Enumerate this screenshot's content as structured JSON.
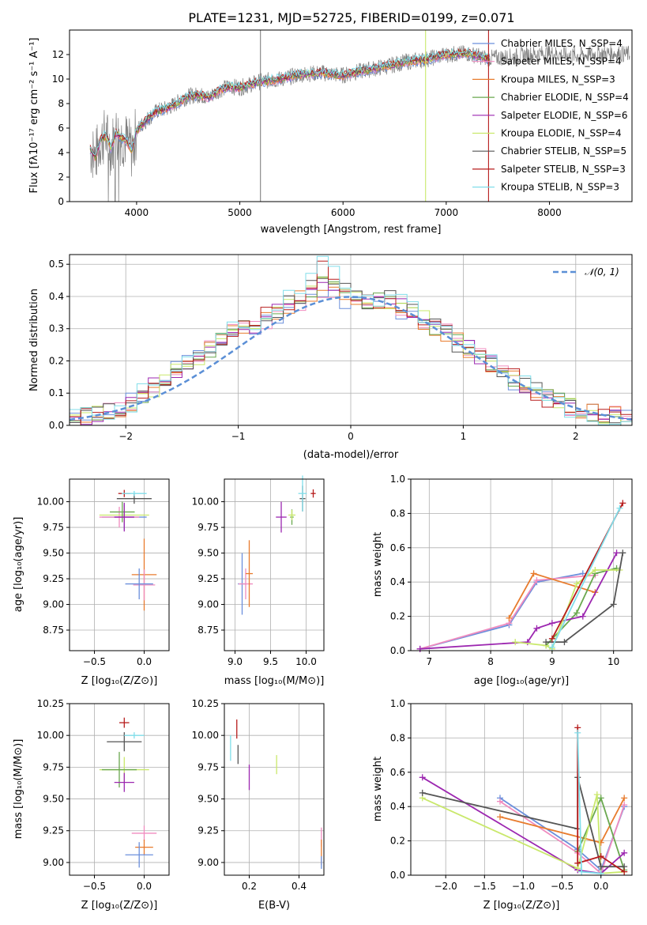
{
  "chart_data": [
    {
      "type": "line",
      "title": "PLATE=1231, MJD=52725, FIBERID=0199, z=0.071",
      "xlabel": "wavelength [Angstrom, rest frame]",
      "ylabel": "Flux [fλ10⁻¹⁷ erg cm⁻² s⁻¹ A⁻¹]",
      "xlim": [
        3350,
        8800
      ],
      "ylim": [
        0,
        14
      ],
      "xticks": [
        "4000",
        "5000",
        "6000",
        "7000",
        "8000"
      ],
      "yticks": [
        "0",
        "2",
        "4",
        "6",
        "8",
        "10",
        "12"
      ],
      "legend_position": "top-right",
      "legend": [
        {
          "label": "Chabrier MILES, N_SSP=4",
          "color": "#6b8fdc"
        },
        {
          "label": "Salpeter MILES, N_SSP=4",
          "color": "#f08cbf"
        },
        {
          "label": "Kroupa MILES, N_SSP=3",
          "color": "#e87b2d"
        },
        {
          "label": "Chabrier ELODIE, N_SSP=4",
          "color": "#6aa84f"
        },
        {
          "label": "Salpeter ELODIE, N_SSP=6",
          "color": "#9c27b0"
        },
        {
          "label": "Kroupa ELODIE, N_SSP=4",
          "color": "#c9e86b"
        },
        {
          "label": "Chabrier STELIB, N_SSP=5",
          "color": "#555555"
        },
        {
          "label": "Salpeter STELIB, N_SSP=3",
          "color": "#b71c1c"
        },
        {
          "label": "Kroupa STELIB, N_SSP=3",
          "color": "#80deea"
        }
      ],
      "observed_color": "#808080",
      "series": [
        {
          "x": [
            3550,
            3600,
            3650,
            3700,
            3750,
            3800,
            3850,
            3900,
            3950,
            4000,
            4100,
            4200,
            4300,
            4400,
            4500,
            4600,
            4700,
            4800,
            4900,
            5000,
            5200,
            5400,
            5600,
            5800,
            6000,
            6200,
            6400,
            6600,
            6800,
            7000,
            7200,
            7400,
            7600,
            7800,
            8000,
            8200,
            8400,
            8600,
            8800
          ],
          "y": [
            4.3,
            3.6,
            5.0,
            5.4,
            4.4,
            5.6,
            5.2,
            5.0,
            4.2,
            5.8,
            6.7,
            7.4,
            7.6,
            8.1,
            8.6,
            8.7,
            8.5,
            9.1,
            9.4,
            9.3,
            9.8,
            10.0,
            10.4,
            10.5,
            10.3,
            10.7,
            11.0,
            11.4,
            11.6,
            12.0,
            12.1,
            11.7,
            11.8,
            12.0,
            12.1,
            11.9,
            12.0,
            12.1,
            12.0
          ]
        }
      ]
    },
    {
      "type": "line",
      "xlabel": "(data-model)/error",
      "ylabel": "Normed distribution",
      "xlim": [
        -2.5,
        2.5
      ],
      "ylim": [
        0,
        0.53
      ],
      "xticks": [
        "−2",
        "−1",
        "0",
        "1",
        "2"
      ],
      "yticks": [
        "0.0",
        "0.1",
        "0.2",
        "0.3",
        "0.4",
        "0.5"
      ],
      "legend_position": "top-right",
      "legend": [
        {
          "label": "𝒩(0, 1)",
          "color": "#5b8fd6"
        }
      ],
      "series": [
        {
          "x": [
            -2.5,
            -2.3,
            -2.1,
            -1.9,
            -1.7,
            -1.5,
            -1.3,
            -1.1,
            -0.9,
            -0.7,
            -0.5,
            -0.3,
            -0.1,
            0.1,
            0.3,
            0.5,
            0.7,
            0.9,
            1.1,
            1.3,
            1.5,
            1.7,
            1.9,
            2.1,
            2.3,
            2.5
          ],
          "y": [
            0.03,
            0.04,
            0.05,
            0.09,
            0.15,
            0.2,
            0.25,
            0.29,
            0.31,
            0.34,
            0.38,
            0.41,
            0.39,
            0.39,
            0.37,
            0.34,
            0.3,
            0.27,
            0.21,
            0.16,
            0.12,
            0.09,
            0.06,
            0.04,
            0.03,
            0.02
          ]
        },
        {
          "x": [
            -2.5,
            -2.3,
            -2.1,
            -1.9,
            -1.7,
            -1.5,
            -1.3,
            -1.1,
            -0.9,
            -0.7,
            -0.5,
            -0.3,
            -0.1,
            0.1,
            0.3,
            0.5,
            0.7,
            0.9,
            1.1,
            1.3,
            1.5,
            1.7,
            1.9,
            2.1,
            2.3,
            2.5
          ],
          "y": [
            0.02,
            0.03,
            0.04,
            0.1,
            0.13,
            0.19,
            0.22,
            0.3,
            0.32,
            0.37,
            0.41,
            0.5,
            0.44,
            0.38,
            0.4,
            0.36,
            0.32,
            0.25,
            0.22,
            0.17,
            0.13,
            0.08,
            0.05,
            0.03,
            0.03,
            0.01
          ]
        }
      ]
    },
    {
      "type": "scatter",
      "xlabel": "Z [log₁₀(Z/Z⊙)]",
      "ylabel": "age  [log₁₀(age/yr)]",
      "xlim": [
        -0.75,
        0.25
      ],
      "ylim": [
        8.55,
        10.22
      ],
      "xticks": [
        "−0.5",
        "0.0"
      ],
      "yticks": [
        "8.75",
        "9.00",
        "9.25",
        "9.50",
        "9.75",
        "10.00"
      ]
    },
    {
      "type": "scatter",
      "xlabel": "mass [log₁₀(M/M⊙)]",
      "xlim": [
        8.85,
        10.25
      ],
      "ylim": [
        8.55,
        10.22
      ],
      "xticks": [
        "9.0",
        "9.5",
        "10.0"
      ],
      "yticks": [
        "8.75",
        "9.00",
        "9.25",
        "9.50",
        "9.75",
        "10.00"
      ]
    },
    {
      "type": "line",
      "xlabel": "age  [log₁₀(age/yr)]",
      "ylabel": "mass weight",
      "xlim": [
        6.7,
        10.3
      ],
      "ylim": [
        0,
        1.0
      ],
      "xticks": [
        "7",
        "8",
        "9",
        "10"
      ],
      "yticks": [
        "0.0",
        "0.2",
        "0.4",
        "0.6",
        "0.8",
        "1.0"
      ],
      "series": [
        {
          "x": [
            6.85,
            8.3,
            8.75,
            9.5
          ],
          "y": [
            0.01,
            0.15,
            0.4,
            0.45
          ]
        },
        {
          "x": [
            6.85,
            8.3,
            8.75,
            9.7
          ],
          "y": [
            0.01,
            0.16,
            0.41,
            0.44
          ]
        },
        {
          "x": [
            8.3,
            8.7,
            9.7
          ],
          "y": [
            0.19,
            0.45,
            0.34
          ]
        },
        {
          "x": [
            8.9,
            9.4,
            9.7,
            10.05
          ],
          "y": [
            0.03,
            0.22,
            0.45,
            0.48
          ]
        },
        {
          "x": [
            6.85,
            8.6,
            8.75,
            9.0,
            9.5,
            10.05
          ],
          "y": [
            0.01,
            0.05,
            0.13,
            0.16,
            0.2,
            0.57
          ]
        },
        {
          "x": [
            8.4,
            8.9,
            9.0,
            9.4,
            9.7,
            10.1
          ],
          "y": [
            0.05,
            0.03,
            0.01,
            0.39,
            0.47,
            0.47
          ]
        },
        {
          "x": [
            8.9,
            9.2,
            10.0,
            10.15
          ],
          "y": [
            0.05,
            0.05,
            0.27,
            0.57
          ]
        },
        {
          "x": [
            9.0,
            10.15
          ],
          "y": [
            0.07,
            0.86
          ]
        },
        {
          "x": [
            9.0,
            10.1
          ],
          "y": [
            0.02,
            0.83
          ]
        }
      ]
    },
    {
      "type": "scatter",
      "xlabel": "Z [log₁₀(Z/Z⊙)]",
      "ylabel": "mass [log₁₀(M/M⊙)]",
      "xlim": [
        -0.75,
        0.25
      ],
      "ylim": [
        8.9,
        10.25
      ],
      "xticks": [
        "−0.5",
        "0.0"
      ],
      "yticks": [
        "9.00",
        "9.25",
        "9.50",
        "9.75",
        "10.00",
        "10.25"
      ]
    },
    {
      "type": "scatter",
      "xlabel": "E(B-V)",
      "xlim": [
        0.1,
        0.5
      ],
      "ylim": [
        8.9,
        10.25
      ],
      "xticks": [
        "0.2",
        "0.4"
      ],
      "yticks": [
        "9.00",
        "9.25",
        "9.50",
        "9.75",
        "10.00",
        "10.25"
      ]
    },
    {
      "type": "line",
      "xlabel": "Z [log₁₀(Z/Z⊙)]",
      "ylabel": "mass weight",
      "xlim": [
        -2.45,
        0.4
      ],
      "ylim": [
        0,
        1.0
      ],
      "xticks": [
        "−2.0",
        "−1.5",
        "−1.0",
        "−0.5",
        "0.0"
      ],
      "yticks": [
        "0.0",
        "0.2",
        "0.4",
        "0.6",
        "0.8",
        "1.0"
      ],
      "series": [
        {
          "x": [
            -1.3,
            -0.3,
            0.0,
            0.3
          ],
          "y": [
            0.45,
            0.15,
            0.03,
            0.4
          ]
        },
        {
          "x": [
            -1.3,
            -0.3,
            0.0,
            0.3
          ],
          "y": [
            0.43,
            0.13,
            0.01,
            0.41
          ]
        },
        {
          "x": [
            -1.3,
            0.0,
            0.3
          ],
          "y": [
            0.34,
            0.19,
            0.45
          ]
        },
        {
          "x": [
            -0.3,
            0.0,
            0.3
          ],
          "y": [
            0.14,
            0.45,
            0.03
          ]
        },
        {
          "x": [
            -2.3,
            -0.3,
            0.0,
            0.3
          ],
          "y": [
            0.57,
            0.03,
            0.01,
            0.13
          ]
        },
        {
          "x": [
            -2.3,
            -0.3,
            -0.05,
            0.0,
            0.3
          ],
          "y": [
            0.45,
            0.04,
            0.47,
            0.01,
            0.02
          ]
        },
        {
          "x": [
            -2.3,
            -0.3,
            -0.3,
            0.0,
            0.3
          ],
          "y": [
            0.48,
            0.27,
            0.57,
            0.05,
            0.05
          ]
        },
        {
          "x": [
            -0.3,
            -0.3,
            0.0,
            0.3
          ],
          "y": [
            0.86,
            0.07,
            0.11,
            0.02
          ]
        },
        {
          "x": [
            -0.3,
            -0.25,
            0.0
          ],
          "y": [
            0.83,
            0.02,
            0.01
          ]
        }
      ]
    }
  ]
}
